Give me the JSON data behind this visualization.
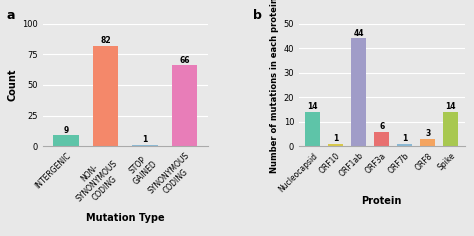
{
  "chart_a": {
    "categories": [
      "INTERGENIC",
      "NON-\nSYNONYMOUS\nCODING",
      "STOP\nGAINED",
      "SYNONYMOUS\nCODING"
    ],
    "values": [
      9,
      82,
      1,
      66
    ],
    "colors": [
      "#5ec4a8",
      "#f4886a",
      "#8ab8d4",
      "#e87db8"
    ],
    "xlabel": "Mutation Type",
    "ylabel": "Count",
    "ylim": [
      0,
      100
    ],
    "yticks": [
      0,
      25,
      50,
      75,
      100
    ],
    "label": "a"
  },
  "chart_b": {
    "categories": [
      "Nucleocapsid",
      "ORF10",
      "ORF1ab",
      "ORF3a",
      "ORF7b",
      "ORF8",
      "Spike"
    ],
    "values": [
      14,
      1,
      44,
      6,
      1,
      3,
      14
    ],
    "colors": [
      "#5ec4a8",
      "#d8c84a",
      "#a09cc8",
      "#e87070",
      "#8ab8d4",
      "#f4a460",
      "#a8c850"
    ],
    "xlabel": "Protein",
    "ylabel": "Number of mutations in each protein",
    "ylim": [
      0,
      50
    ],
    "yticks": [
      0,
      10,
      20,
      30,
      40,
      50
    ],
    "label": "b"
  },
  "bg_color": "#e8e8e8",
  "grid_color": "#ffffff",
  "font_size": 6,
  "label_font_size": 7,
  "value_font_size": 5.5
}
